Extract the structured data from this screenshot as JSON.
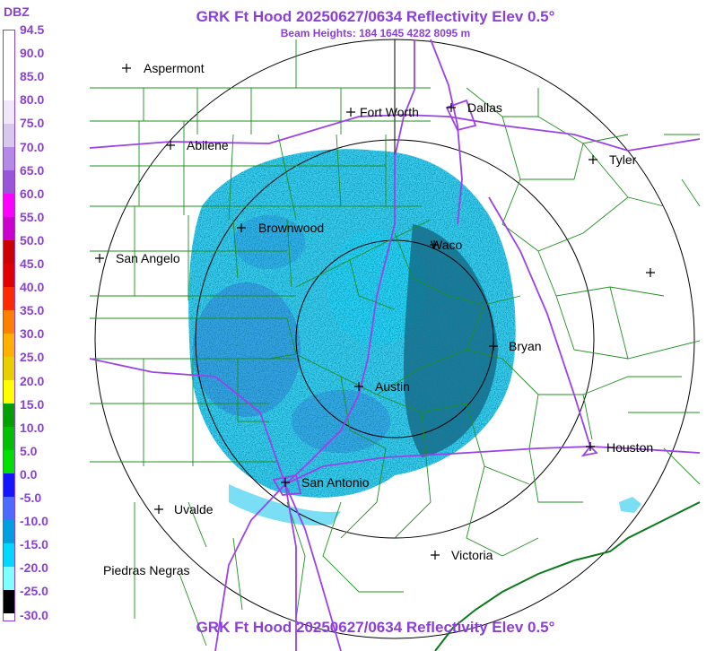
{
  "header": {
    "title": "GRK Ft Hood 20250627/0634 Reflectivity Elev 0.5°",
    "subtitle": "Beam Heights: 184 1645 4282 8095 m",
    "footer_title": "GRK Ft Hood 20250627/0634 Reflectivity Elev 0.5°"
  },
  "scale": {
    "title": "DBZ",
    "labels": [
      "94.5",
      "90.0",
      "85.0",
      "80.0",
      "75.0",
      "70.0",
      "65.0",
      "60.0",
      "55.0",
      "50.0",
      "45.0",
      "40.0",
      "35.0",
      "30.0",
      "25.0",
      "20.0",
      "15.0",
      "10.0",
      "5.0",
      "0.0",
      "-5.0",
      "-10.0",
      "-15.0",
      "-20.0",
      "-25.0",
      "-30.0"
    ],
    "colors": [
      "#ffffff",
      "#ffffff",
      "#ffffff",
      "#f0e8f8",
      "#d8c8ee",
      "#b48ae6",
      "#9855d8",
      "#ff00ff",
      "#cc00cc",
      "#cc0000",
      "#e00000",
      "#ff2a00",
      "#ff7f00",
      "#ffb000",
      "#e8d000",
      "#ffff00",
      "#00a000",
      "#00c000",
      "#00e000",
      "#1414ff",
      "#4b6bff",
      "#00a0e0",
      "#00d8ff",
      "#80ffff",
      "#000000"
    ]
  },
  "map": {
    "radar": "GRK",
    "cities": [
      {
        "name": "Aspermont"
      },
      {
        "name": "Fort Worth"
      },
      {
        "name": "Dallas"
      },
      {
        "name": "Abilene"
      },
      {
        "name": "Tyler"
      },
      {
        "name": "Brownwood"
      },
      {
        "name": "Waco"
      },
      {
        "name": "San Angelo"
      },
      {
        "name": "Bryan"
      },
      {
        "name": "Austin"
      },
      {
        "name": "Houston"
      },
      {
        "name": "San Antonio"
      },
      {
        "name": "Uvalde"
      },
      {
        "name": "Victoria"
      },
      {
        "name": "Piedras Negras"
      },
      {
        "name": ""
      }
    ],
    "colors": {
      "counties": "#1f8f1f",
      "highways": "#9a42e8",
      "range_rings": "#000000",
      "echo_light": "#22d4f0",
      "echo_mid": "#2f7fe0",
      "echo_dark": "#0a3a5a"
    }
  }
}
